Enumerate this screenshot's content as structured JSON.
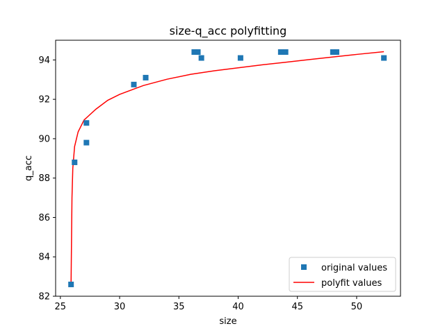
{
  "chart_data": {
    "type": "scatter",
    "title": "size-q_acc polyfitting",
    "xlabel": "size",
    "ylabel": "q_acc",
    "xlim": [
      24.6,
      53.7
    ],
    "ylim": [
      82,
      95
    ],
    "xticks": [
      25,
      30,
      35,
      40,
      45,
      50
    ],
    "yticks": [
      82,
      84,
      86,
      88,
      90,
      92,
      94
    ],
    "grid": false,
    "legend_position": "lower right",
    "series": [
      {
        "name": "original values",
        "style": "square-markers",
        "color": "#1f77b4",
        "points": [
          {
            "x": 25.9,
            "y": 82.6
          },
          {
            "x": 26.2,
            "y": 88.8
          },
          {
            "x": 27.2,
            "y": 90.8
          },
          {
            "x": 27.2,
            "y": 89.8
          },
          {
            "x": 31.2,
            "y": 92.75
          },
          {
            "x": 32.2,
            "y": 93.1
          },
          {
            "x": 36.3,
            "y": 94.4
          },
          {
            "x": 36.6,
            "y": 94.4
          },
          {
            "x": 36.9,
            "y": 94.1
          },
          {
            "x": 40.2,
            "y": 94.1
          },
          {
            "x": 43.6,
            "y": 94.4
          },
          {
            "x": 44.0,
            "y": 94.4
          },
          {
            "x": 48.0,
            "y": 94.4
          },
          {
            "x": 48.3,
            "y": 94.4
          },
          {
            "x": 52.3,
            "y": 94.1
          }
        ]
      },
      {
        "name": "polyfit values",
        "style": "line",
        "color": "#ff0000",
        "points": [
          {
            "x": 25.9,
            "y": 82.5
          },
          {
            "x": 25.98,
            "y": 87.0
          },
          {
            "x": 26.05,
            "y": 88.5
          },
          {
            "x": 26.2,
            "y": 89.6
          },
          {
            "x": 26.5,
            "y": 90.35
          },
          {
            "x": 27.0,
            "y": 90.95
          },
          {
            "x": 28.0,
            "y": 91.5
          },
          {
            "x": 29.0,
            "y": 91.95
          },
          {
            "x": 30.0,
            "y": 92.25
          },
          {
            "x": 32.0,
            "y": 92.7
          },
          {
            "x": 34.0,
            "y": 93.02
          },
          {
            "x": 36.0,
            "y": 93.27
          },
          {
            "x": 38.0,
            "y": 93.45
          },
          {
            "x": 40.0,
            "y": 93.6
          },
          {
            "x": 42.0,
            "y": 93.75
          },
          {
            "x": 44.0,
            "y": 93.88
          },
          {
            "x": 46.0,
            "y": 94.02
          },
          {
            "x": 48.0,
            "y": 94.15
          },
          {
            "x": 50.0,
            "y": 94.28
          },
          {
            "x": 52.3,
            "y": 94.42
          }
        ]
      }
    ]
  }
}
